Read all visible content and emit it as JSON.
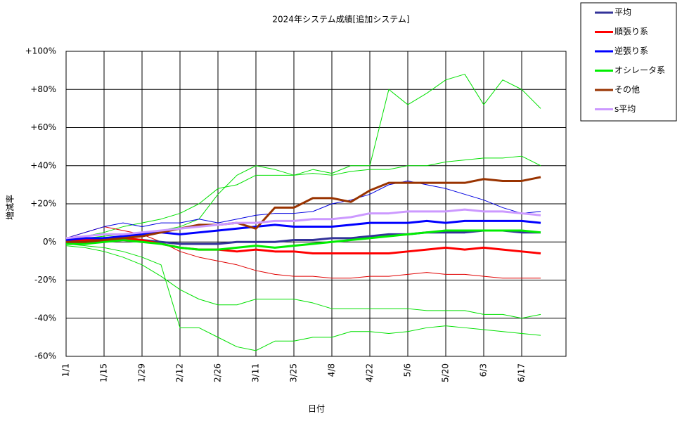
{
  "chart_data": {
    "type": "line",
    "title": "2024年システム成績[追加システム]",
    "xlabel": "日付",
    "ylabel": "増減率",
    "categories": [
      "1/1",
      null,
      "1/15",
      null,
      "1/29",
      null,
      "2/12",
      null,
      "2/26",
      null,
      "3/11",
      null,
      "3/25",
      null,
      "4/8",
      null,
      "4/22",
      null,
      "5/6",
      null,
      "5/20",
      null,
      "6/3",
      null,
      "6/17",
      null
    ],
    "ylim": [
      -60,
      100
    ],
    "yticks": [
      {
        "value": -60,
        "label": "-60%"
      },
      {
        "value": -40,
        "label": "-40%"
      },
      {
        "value": -20,
        "label": "-20%"
      },
      {
        "value": 0,
        "label": "0%"
      },
      {
        "value": 20,
        "label": "+20%"
      },
      {
        "value": 40,
        "label": "+40%"
      },
      {
        "value": 60,
        "label": "+60%"
      },
      {
        "value": 80,
        "label": "+80%"
      },
      {
        "value": 100,
        "label": "+100%"
      }
    ],
    "grid": true,
    "legend": "outside-top-right",
    "series": [
      {
        "color": "#00e000",
        "width": 1,
        "values": [
          0,
          2,
          3,
          4,
          5,
          6,
          8,
          12,
          25,
          35,
          40,
          38,
          35,
          38,
          36,
          40,
          40,
          80,
          72,
          78,
          85,
          88,
          72,
          85,
          80,
          70
        ]
      },
      {
        "color": "#00e000",
        "width": 1,
        "values": [
          -1,
          -2,
          -3,
          -5,
          -8,
          -12,
          -45,
          -45,
          -50,
          -55,
          -57,
          -52,
          -52,
          -50,
          -50,
          -47,
          -47,
          -48,
          -47,
          -45,
          -44,
          -45,
          -46,
          -47,
          -48,
          -49
        ]
      },
      {
        "color": "#00e000",
        "width": 1,
        "values": [
          -2,
          -3,
          -5,
          -8,
          -12,
          -18,
          -25,
          -30,
          -33,
          -33,
          -30,
          -30,
          -30,
          -32,
          -35,
          -35,
          -35,
          -35,
          -35,
          -36,
          -36,
          -36,
          -38,
          -38,
          -40,
          -38
        ]
      },
      {
        "color": "#00e000",
        "width": 1,
        "values": [
          1,
          3,
          5,
          8,
          10,
          12,
          15,
          20,
          28,
          30,
          35,
          35,
          35,
          36,
          35,
          37,
          38,
          38,
          40,
          40,
          42,
          43,
          44,
          44,
          45,
          40
        ]
      },
      {
        "color": "#e00000",
        "width": 1,
        "values": [
          2,
          5,
          8,
          6,
          4,
          0,
          -5,
          -8,
          -10,
          -12,
          -15,
          -17,
          -18,
          -18,
          -19,
          -19,
          -18,
          -18,
          -17,
          -16,
          -17,
          -17,
          -18,
          -19,
          -19,
          -19
        ]
      },
      {
        "color": "#0000e0",
        "width": 1,
        "values": [
          2,
          5,
          8,
          10,
          8,
          10,
          10,
          12,
          10,
          12,
          14,
          15,
          15,
          16,
          20,
          22,
          25,
          30,
          32,
          30,
          28,
          25,
          22,
          18,
          15,
          16
        ]
      },
      {
        "name": "平均",
        "color": "#333399",
        "width": 3,
        "values": [
          1,
          1,
          2,
          2,
          1,
          0,
          -1,
          -1,
          -1,
          0,
          0,
          0,
          1,
          1,
          2,
          2,
          3,
          4,
          4,
          5,
          5,
          5,
          6,
          6,
          5,
          5
        ]
      },
      {
        "name": "順張り系",
        "color": "#ff0000",
        "width": 3,
        "values": [
          0,
          1,
          1,
          2,
          1,
          -1,
          -3,
          -4,
          -4,
          -5,
          -4,
          -5,
          -5,
          -6,
          -6,
          -6,
          -6,
          -6,
          -5,
          -4,
          -3,
          -4,
          -3,
          -4,
          -5,
          -6
        ]
      },
      {
        "name": "逆張り系",
        "color": "#0000ff",
        "width": 3,
        "values": [
          1,
          2,
          2,
          3,
          4,
          5,
          4,
          5,
          6,
          7,
          8,
          9,
          8,
          8,
          8,
          9,
          10,
          10,
          10,
          11,
          10,
          11,
          11,
          11,
          11,
          10
        ]
      },
      {
        "name": "オシレータ系",
        "color": "#00ee00",
        "width": 3,
        "values": [
          -1,
          -1,
          0,
          1,
          0,
          -1,
          -3,
          -4,
          -4,
          -3,
          -2,
          -3,
          -2,
          -1,
          0,
          1,
          2,
          3,
          4,
          5,
          6,
          6,
          6,
          6,
          6,
          5
        ]
      },
      {
        "name": "その他",
        "color": "#993300",
        "width": 3,
        "values": [
          0,
          0,
          1,
          2,
          3,
          5,
          7,
          9,
          9,
          10,
          7,
          18,
          18,
          23,
          23,
          21,
          27,
          31,
          31,
          31,
          31,
          31,
          33,
          32,
          32,
          34
        ]
      },
      {
        "name": "s平均",
        "color": "#cc99ff",
        "width": 3,
        "values": [
          2,
          3,
          4,
          4,
          5,
          6,
          7,
          8,
          9,
          10,
          10,
          11,
          11,
          12,
          12,
          13,
          15,
          15,
          16,
          16,
          16,
          17,
          16,
          16,
          15,
          14
        ]
      }
    ]
  }
}
